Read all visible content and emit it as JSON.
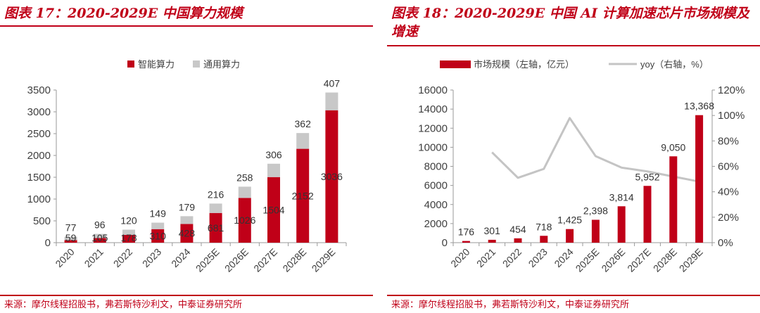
{
  "left_panel": {
    "title": "图表 17：2020-2029E 中国算力规模",
    "source": "来源：摩尔线程招股书，弗若斯特沙利文，中泰证券研究所"
  },
  "right_panel": {
    "title": "图表 18：2020-2029E 中国 AI 计算加速芯片市场规模及增速",
    "source": "来源：摩尔线程招股书，弗若斯特沙利文，中泰证券研究所"
  },
  "colors": {
    "red": "#c00018",
    "gray": "#c8c8c8",
    "line": "#c4c4c4",
    "axis": "#9a9a9a",
    "text": "#404040"
  },
  "chart_data": [
    {
      "type": "bar",
      "stacked": true,
      "categories": [
        "2020",
        "2021",
        "2022",
        "2023",
        "2024",
        "2025E",
        "2026E",
        "2027E",
        "2028E",
        "2029E"
      ],
      "series": [
        {
          "name": "智能算力",
          "color": "#c00018",
          "values": [
            59,
            105,
            178,
            310,
            428,
            681,
            1026,
            1504,
            2152,
            3036
          ]
        },
        {
          "name": "通用算力",
          "color": "#c8c8c8",
          "values": [
            77,
            96,
            120,
            149,
            179,
            216,
            258,
            306,
            362,
            407
          ]
        }
      ],
      "ylim": [
        0,
        3500
      ],
      "yticks": [
        0,
        500,
        1000,
        1500,
        2000,
        2500,
        3000,
        3500
      ],
      "legend": "top-center",
      "grid": false
    },
    {
      "type": "bar",
      "categories": [
        "2020",
        "2021",
        "2022",
        "2023",
        "2024",
        "2025E",
        "2026E",
        "2027E",
        "2028E",
        "2029E"
      ],
      "series": [
        {
          "name": "市场规模（左轴，亿元）",
          "color": "#c00018",
          "values": [
            176,
            301,
            454,
            718,
            1425,
            2398,
            3814,
            5952,
            9050,
            13368
          ],
          "labels": [
            "176",
            "301",
            "454",
            "718",
            "1,425",
            "2,398",
            "3,814",
            "5,952",
            "9,050",
            "13,368"
          ]
        },
        {
          "name": "yoy（右轴，%）",
          "type": "line",
          "axis": "right",
          "color": "#c4c4c4",
          "values": [
            null,
            71,
            51,
            58,
            98,
            68,
            59,
            56,
            52,
            48
          ]
        }
      ],
      "ylim": [
        0,
        16000
      ],
      "yticks": [
        0,
        2000,
        4000,
        6000,
        8000,
        10000,
        12000,
        14000,
        16000
      ],
      "y2lim": [
        0,
        120
      ],
      "y2ticks": [
        "0%",
        "20%",
        "40%",
        "60%",
        "80%",
        "100%",
        "120%"
      ],
      "legend": "top-center",
      "grid": false
    }
  ]
}
